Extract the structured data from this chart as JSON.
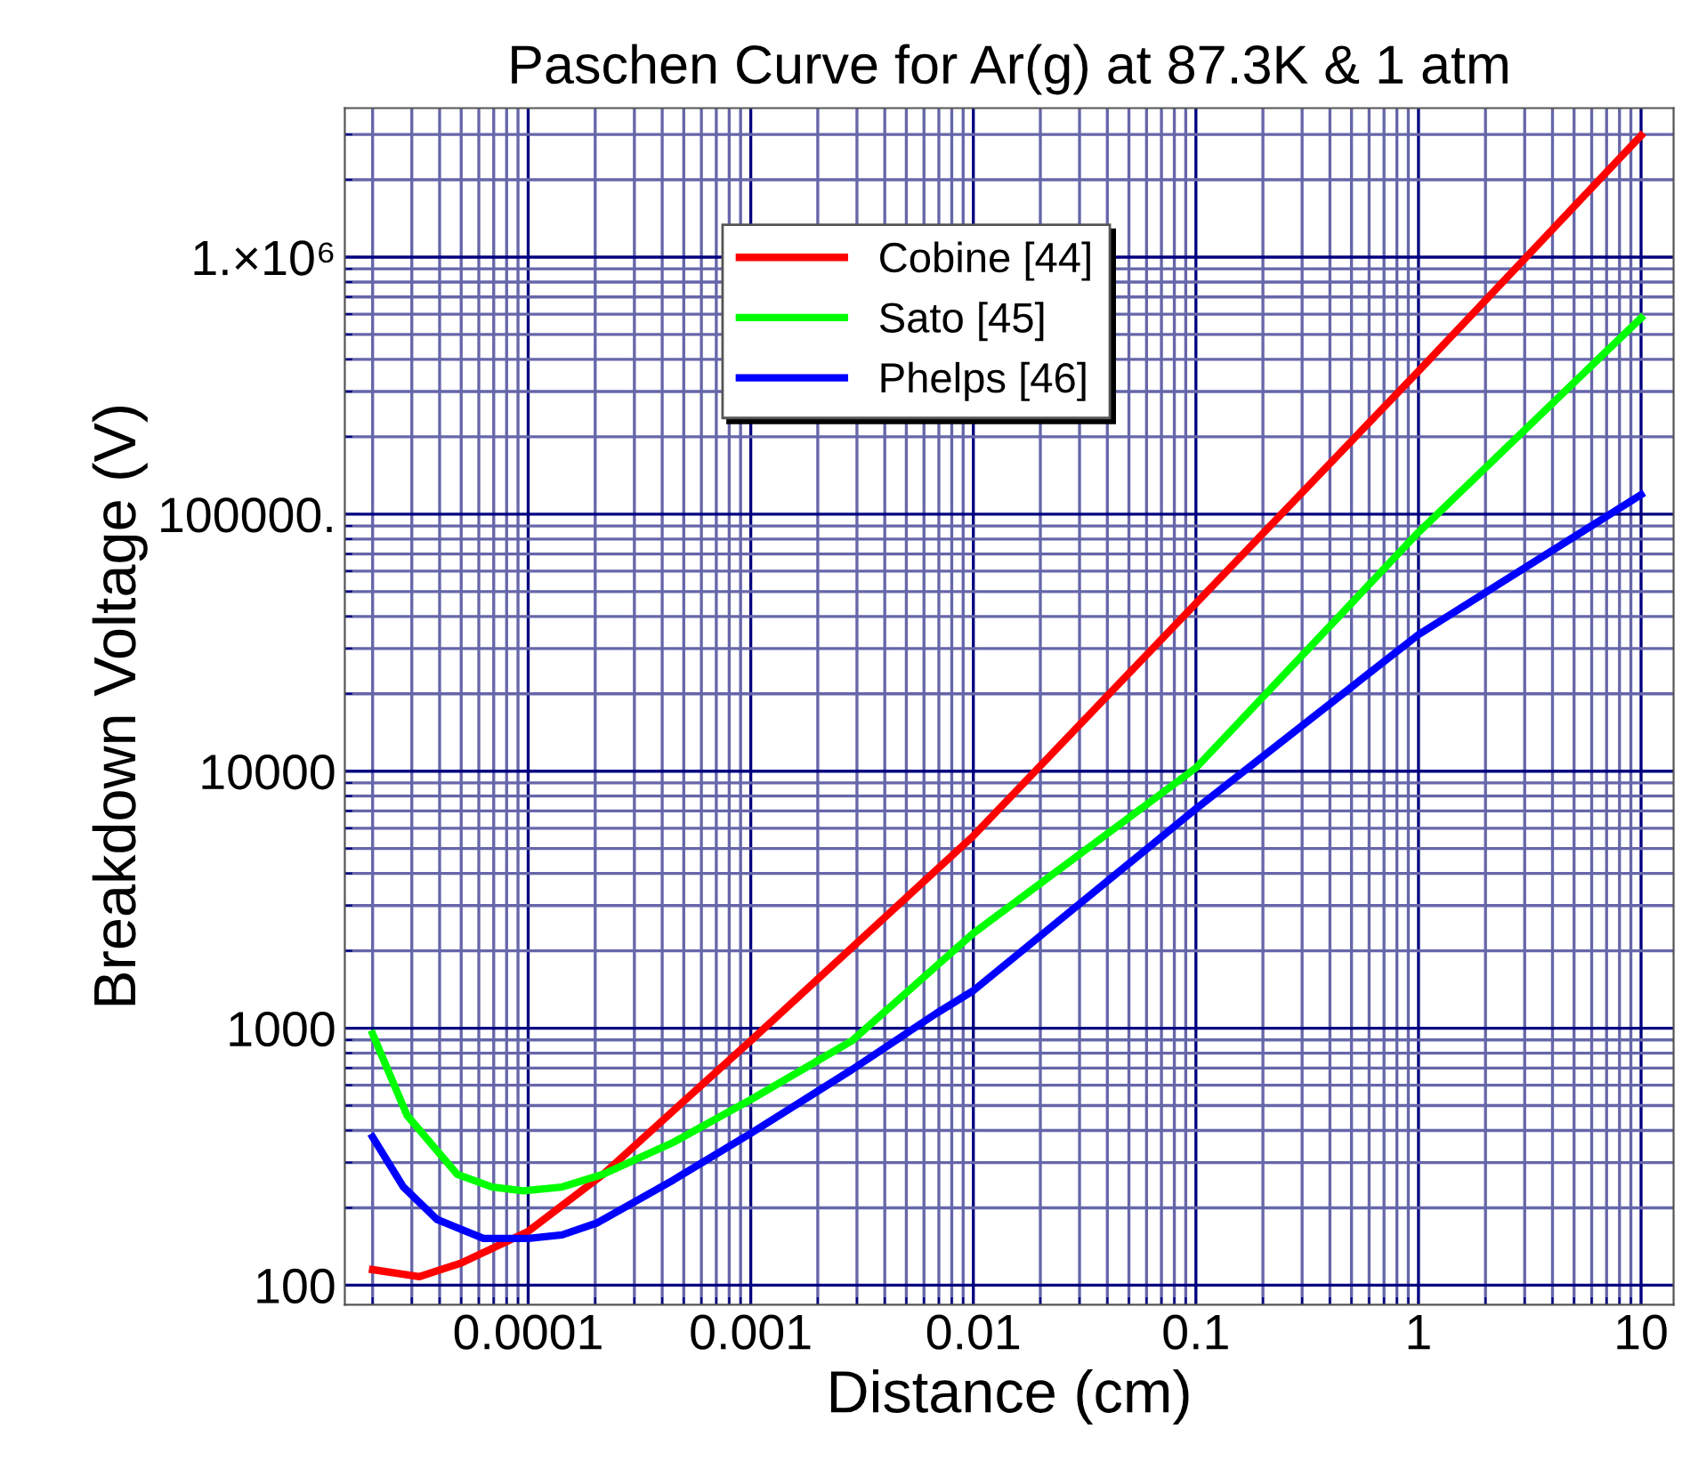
{
  "chart_data": {
    "type": "line",
    "title": "Paschen Curve for Ar(g) at 87.3K & 1 atm",
    "xlabel": "Distance (cm)",
    "ylabel": "Breakdown Voltage (V)",
    "log": "xy",
    "grid": true,
    "legend": "top",
    "line_style": "solid",
    "marker": "none",
    "xlim": [
      1.5e-05,
      14
    ],
    "ylim": [
      84,
      3800000.0
    ],
    "xticks": [
      {
        "value": 2e-05,
        "label": null
      },
      {
        "value": 3e-05,
        "label": null
      },
      {
        "value": 4e-05,
        "label": null
      },
      {
        "value": 5e-05,
        "label": null
      },
      {
        "value": 6e-05,
        "label": null
      },
      {
        "value": 7e-05,
        "label": null
      },
      {
        "value": 8e-05,
        "label": null
      },
      {
        "value": 9e-05,
        "label": null
      },
      0.0001,
      {
        "value": 0.0002,
        "label": null
      },
      {
        "value": 0.0003,
        "label": null
      },
      {
        "value": 0.0004,
        "label": null
      },
      {
        "value": 0.0005,
        "label": null
      },
      {
        "value": 0.0006,
        "label": null
      },
      {
        "value": 0.0007,
        "label": null
      },
      {
        "value": 0.0008,
        "label": null
      },
      {
        "value": 0.0009,
        "label": null
      },
      0.001,
      {
        "value": 0.002,
        "label": null
      },
      {
        "value": 0.003,
        "label": null
      },
      {
        "value": 0.004,
        "label": null
      },
      {
        "value": 0.005,
        "label": null
      },
      {
        "value": 0.006,
        "label": null
      },
      {
        "value": 0.007,
        "label": null
      },
      {
        "value": 0.008,
        "label": null
      },
      {
        "value": 0.009,
        "label": null
      },
      0.01,
      {
        "value": 0.02,
        "label": null
      },
      {
        "value": 0.03,
        "label": null
      },
      {
        "value": 0.04,
        "label": null
      },
      {
        "value": 0.05,
        "label": null
      },
      {
        "value": 0.06,
        "label": null
      },
      {
        "value": 0.07,
        "label": null
      },
      {
        "value": 0.08,
        "label": null
      },
      {
        "value": 0.09,
        "label": null
      },
      0.1,
      {
        "value": 0.2,
        "label": null
      },
      {
        "value": 0.3,
        "label": null
      },
      {
        "value": 0.4,
        "label": null
      },
      {
        "value": 0.5,
        "label": null
      },
      {
        "value": 0.6,
        "label": null
      },
      {
        "value": 0.7,
        "label": null
      },
      {
        "value": 0.8,
        "label": null
      },
      {
        "value": 0.9,
        "label": null
      },
      1,
      {
        "value": 2,
        "label": null
      },
      {
        "value": 3,
        "label": null
      },
      {
        "value": 4,
        "label": null
      },
      {
        "value": 5,
        "label": null
      },
      {
        "value": 6,
        "label": null
      },
      {
        "value": 7,
        "label": null
      },
      {
        "value": 8,
        "label": null
      },
      {
        "value": 9,
        "label": null
      },
      10
    ],
    "yticks": [
      100,
      {
        "value": 200,
        "label": null
      },
      {
        "value": 300,
        "label": null
      },
      {
        "value": 400,
        "label": null
      },
      {
        "value": 500,
        "label": null
      },
      {
        "value": 600,
        "label": null
      },
      {
        "value": 700,
        "label": null
      },
      {
        "value": 800,
        "label": null
      },
      {
        "value": 900,
        "label": null
      },
      1000,
      {
        "value": 2000,
        "label": null
      },
      {
        "value": 3000,
        "label": null
      },
      {
        "value": 4000,
        "label": null
      },
      {
        "value": 5000,
        "label": null
      },
      {
        "value": 6000,
        "label": null
      },
      {
        "value": 7000,
        "label": null
      },
      {
        "value": 8000,
        "label": null
      },
      {
        "value": 9000,
        "label": null
      },
      10000,
      {
        "value": 20000,
        "label": null
      },
      {
        "value": 30000,
        "label": null
      },
      {
        "value": 40000,
        "label": null
      },
      {
        "value": 50000,
        "label": null
      },
      {
        "value": 60000,
        "label": null
      },
      {
        "value": 70000,
        "label": null
      },
      {
        "value": 80000,
        "label": null
      },
      {
        "value": 90000,
        "label": null
      },
      {
        "value": 100000,
        "label": "100000."
      },
      {
        "value": 200000,
        "label": null
      },
      {
        "value": 300000,
        "label": null
      },
      {
        "value": 400000,
        "label": null
      },
      {
        "value": 500000,
        "label": null
      },
      {
        "value": 600000,
        "label": null
      },
      {
        "value": 700000,
        "label": null
      },
      {
        "value": 800000,
        "label": null
      },
      {
        "value": 900000,
        "label": null
      },
      {
        "value": 1000000,
        "label": "1.×10⁶"
      },
      {
        "value": 2000000,
        "label": null
      },
      {
        "value": 3000000,
        "label": null
      }
    ],
    "series": [
      {
        "name": "Cobine [44]",
        "color": "#ff0000",
        "x": [
          2e-05,
          3.25e-05,
          5e-05,
          0.0001,
          0.000217,
          0.001,
          0.01,
          0.1,
          1,
          10
        ],
        "values": [
          115,
          108,
          122,
          162,
          270,
          894,
          5600,
          45000,
          360000,
          2970000
        ]
      },
      {
        "name": "Sato [45]",
        "color": "#00ff00",
        "x": [
          2e-05,
          2.86e-05,
          4.8e-05,
          6.9e-05,
          9.5e-05,
          0.000142,
          0.000217,
          0.00045,
          0.001,
          0.00285,
          0.01,
          0.1,
          1,
          10
        ],
        "values": [
          950,
          457,
          270,
          241,
          233,
          241,
          270,
          360,
          527,
          894,
          2340,
          10300,
          85000,
          580000
        ]
      },
      {
        "name": "Phelps [46]",
        "color": "#0000ff",
        "x": [
          2e-05,
          2.75e-05,
          3.9e-05,
          6.3e-05,
          0.0001,
          0.000142,
          0.000205,
          0.00045,
          0.001,
          0.00285,
          0.0068,
          0.01,
          0.1,
          1,
          10
        ],
        "values": [
          377,
          241,
          180,
          152,
          152,
          157,
          175,
          257,
          390,
          690,
          1140,
          1400,
          7140,
          34000,
          119000
        ]
      }
    ]
  }
}
